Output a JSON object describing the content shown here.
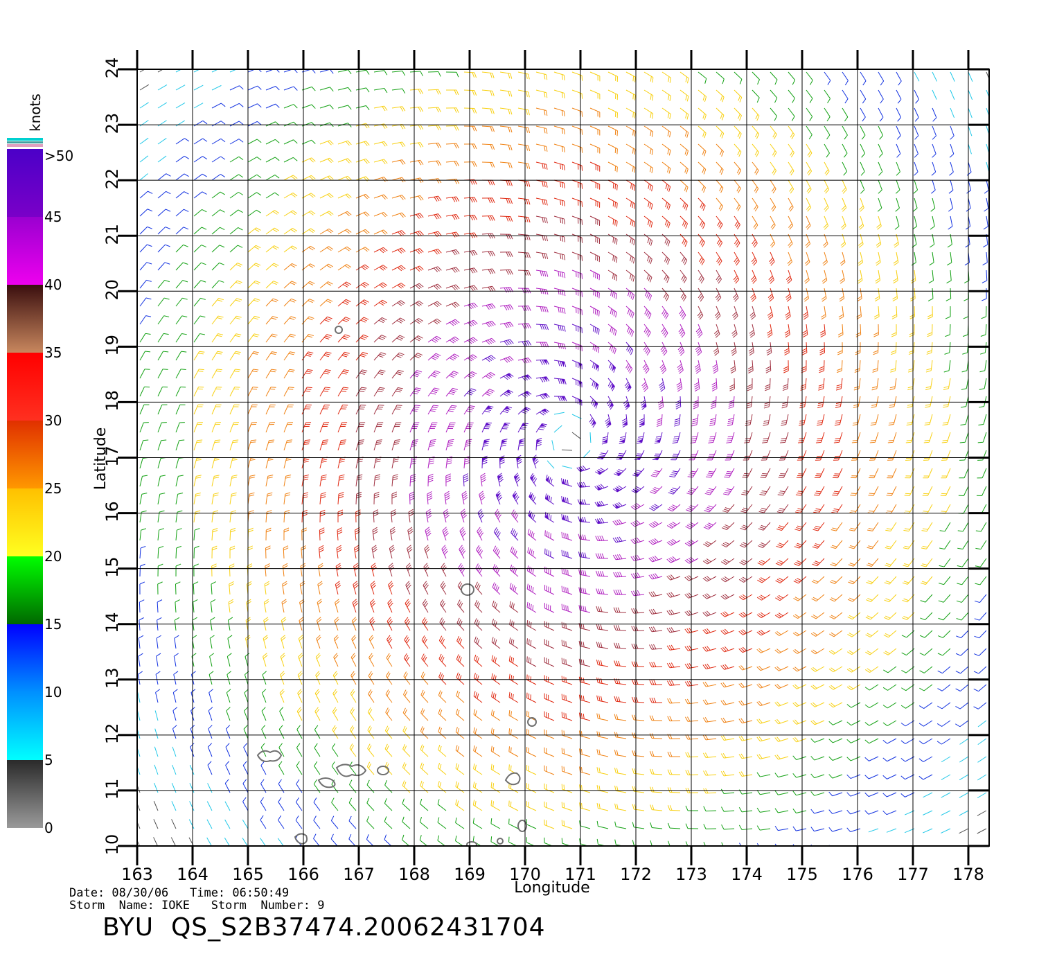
{
  "map": {
    "lon_range": [
      163,
      178
    ],
    "lat_range": [
      10,
      24
    ],
    "lon_ticks": [
      "163",
      "164",
      "165",
      "166",
      "167",
      "168",
      "169",
      "170",
      "171",
      "172",
      "173",
      "174",
      "175",
      "176",
      "177",
      "178"
    ],
    "lat_ticks": [
      "10",
      "11",
      "12",
      "13",
      "14",
      "15",
      "16",
      "17",
      "18",
      "19",
      "20",
      "21",
      "22",
      "23",
      "24"
    ],
    "xlabel": "Longitude",
    "ylabel": "Latitude",
    "storm_center": {
      "lon": 170.8,
      "lat": 17.3
    },
    "field": "wind barbs colored by speed"
  },
  "colorbar": {
    "unit": "knots",
    "labels": [
      ">50",
      "45",
      "40",
      "35",
      "30",
      "25",
      "20",
      "15",
      "10",
      "5",
      "0"
    ],
    "bands": [
      {
        "from": 45,
        "to": 50,
        "top": "#4b00c8",
        "bottom": "#7a00c8"
      },
      {
        "from": 40,
        "to": 45,
        "top": "#9a00d0",
        "bottom": "#ee00ee"
      },
      {
        "from": 35,
        "to": 40,
        "top": "#3a0e0e",
        "bottom": "#c8875e"
      },
      {
        "from": 30,
        "to": 35,
        "top": "#ff0000",
        "bottom": "#ff3020"
      },
      {
        "from": 25,
        "to": 30,
        "top": "#e03000",
        "bottom": "#ff9800"
      },
      {
        "from": 20,
        "to": 25,
        "top": "#ffc000",
        "bottom": "#ffff20"
      },
      {
        "from": 15,
        "to": 20,
        "top": "#00ff00",
        "bottom": "#006800"
      },
      {
        "from": 10,
        "to": 15,
        "top": "#0000ff",
        "bottom": "#0090ff"
      },
      {
        "from": 5,
        "to": 10,
        "top": "#0090ff",
        "bottom": "#00ffff"
      },
      {
        "from": 0,
        "to": 5,
        "top": "#2a2a2a",
        "bottom": "#9a9a9a"
      }
    ]
  },
  "info": {
    "line1": "Date: 08/30/06   Time: 06:50:49",
    "line2": "Storm  Name: IOKE   Storm  Number: 9",
    "id": "BYU  QS_S2B37474.20062431704"
  },
  "colors": {
    "grid": "#000000",
    "land_outline": "#707070"
  }
}
